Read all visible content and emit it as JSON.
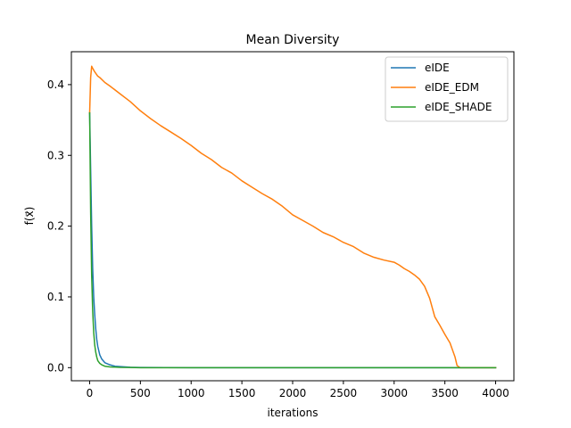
{
  "chart_data": {
    "type": "line",
    "title": "Mean Diversity",
    "xlabel": "iterations",
    "ylabel": "f(x⃗)",
    "xlim": [
      -180,
      4180
    ],
    "ylim": [
      -0.0185,
      0.4465
    ],
    "xticks": [
      0,
      500,
      1000,
      1500,
      2000,
      2500,
      3000,
      3500,
      4000
    ],
    "xtick_labels": [
      "0",
      "500",
      "1000",
      "1500",
      "2000",
      "2500",
      "3000",
      "3500",
      "4000"
    ],
    "yticks": [
      0.0,
      0.1,
      0.2,
      0.3,
      0.4
    ],
    "ytick_labels": [
      "0.0",
      "0.1",
      "0.2",
      "0.3",
      "0.4"
    ],
    "grid": false,
    "legend_position": "top-right",
    "series": [
      {
        "name": "eIDE",
        "color": "#1f77b4",
        "x": [
          0,
          10,
          20,
          30,
          40,
          50,
          60,
          70,
          80,
          100,
          120,
          150,
          200,
          250,
          300,
          400,
          500,
          1000,
          2000,
          3000,
          4000
        ],
        "y": [
          0.36,
          0.28,
          0.2,
          0.14,
          0.1,
          0.075,
          0.055,
          0.04,
          0.03,
          0.018,
          0.012,
          0.007,
          0.004,
          0.002,
          0.0015,
          0.0005,
          0.0002,
          0.0,
          0.0,
          0.0,
          0.0
        ]
      },
      {
        "name": "eIDE_EDM",
        "color": "#ff7f0e",
        "x": [
          0,
          10,
          20,
          30,
          50,
          80,
          100,
          150,
          200,
          300,
          400,
          500,
          600,
          700,
          800,
          900,
          1000,
          1100,
          1200,
          1300,
          1400,
          1500,
          1600,
          1700,
          1800,
          1900,
          2000,
          2100,
          2200,
          2300,
          2400,
          2500,
          2600,
          2700,
          2800,
          2900,
          3000,
          3050,
          3100,
          3150,
          3200,
          3250,
          3300,
          3350,
          3400,
          3450,
          3500,
          3550,
          3600,
          3620,
          3650,
          3700,
          3800,
          4000
        ],
        "y": [
          0.36,
          0.41,
          0.426,
          0.423,
          0.418,
          0.412,
          0.41,
          0.403,
          0.398,
          0.387,
          0.376,
          0.363,
          0.352,
          0.342,
          0.333,
          0.324,
          0.314,
          0.303,
          0.294,
          0.283,
          0.275,
          0.264,
          0.255,
          0.246,
          0.238,
          0.228,
          0.216,
          0.208,
          0.2,
          0.191,
          0.185,
          0.177,
          0.171,
          0.162,
          0.156,
          0.152,
          0.149,
          0.145,
          0.14,
          0.136,
          0.131,
          0.125,
          0.115,
          0.098,
          0.072,
          0.06,
          0.047,
          0.035,
          0.015,
          0.003,
          0.0,
          0.0,
          0.0,
          0.0
        ]
      },
      {
        "name": "eIDE_SHADE",
        "color": "#2ca02c",
        "x": [
          0,
          10,
          20,
          30,
          40,
          50,
          60,
          70,
          80,
          100,
          120,
          150,
          200,
          300,
          400,
          500,
          1000,
          2000,
          3000,
          4000
        ],
        "y": [
          0.36,
          0.22,
          0.13,
          0.08,
          0.05,
          0.032,
          0.022,
          0.015,
          0.01,
          0.006,
          0.004,
          0.002,
          0.001,
          0.0004,
          0.0002,
          0.0,
          0.0,
          0.0,
          0.0,
          0.0
        ]
      }
    ]
  }
}
